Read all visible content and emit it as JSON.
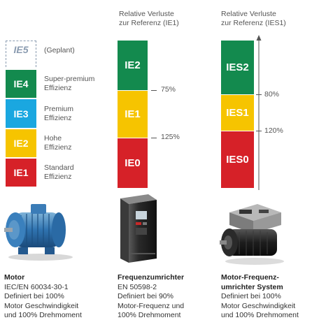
{
  "motor_scale": {
    "planned": {
      "label": "IE5",
      "note": "(Geplant)"
    },
    "classes": [
      {
        "label": "IE4",
        "desc1": "Super-premium",
        "desc2": "Effizienz",
        "color": "#138a4e"
      },
      {
        "label": "IE3",
        "desc1": "Premium",
        "desc2": "Effizienz",
        "color": "#1aa7e0"
      },
      {
        "label": "IE2",
        "desc1": "Hohe",
        "desc2": "Effizienz",
        "color": "#f6c400"
      },
      {
        "label": "IE1",
        "desc1": "Standard",
        "desc2": "Effizienz",
        "color": "#d62128"
      }
    ]
  },
  "drive_scale": {
    "title1": "Relative Verluste",
    "title2": "zur Referenz (IE1)",
    "classes": [
      {
        "label": "IE2",
        "color": "#138a4e"
      },
      {
        "label": "IE1",
        "color": "#f6c400"
      },
      {
        "label": "IE0",
        "color": "#d62128"
      }
    ],
    "ticks": [
      "75%",
      "125%"
    ]
  },
  "system_scale": {
    "title1": "Relative Verluste",
    "title2": "zur Referenz (IES1)",
    "classes": [
      {
        "label": "IES2",
        "color": "#138a4e"
      },
      {
        "label": "IES1",
        "color": "#f6c400"
      },
      {
        "label": "IES0",
        "color": "#d62128"
      }
    ],
    "ticks": [
      "80%",
      "120%"
    ]
  },
  "captions": {
    "motor": {
      "title": "Motor",
      "lines": [
        "IEC/EN 60034-30-1",
        "Definiert bei 100%",
        "Motor Geschwindigkeit",
        "und 100% Drehmoment"
      ]
    },
    "drive": {
      "title": "Frequenzumrichter",
      "lines": [
        "EN 50598-2",
        "Definiert bei 90%",
        "Motor-Frequenz und",
        "100% Drehmoment"
      ]
    },
    "system": {
      "title1": "Motor-Frequenz-",
      "title2": "umrichter System",
      "lines": [
        "Definiert bei 100%",
        "Motor Geschwindigkeit",
        "und 100% Drehmoment"
      ]
    }
  },
  "images": {
    "motor": "blue-electric-motor",
    "drive": "frequency-converter-unit",
    "system": "motor-with-integrated-drive"
  }
}
